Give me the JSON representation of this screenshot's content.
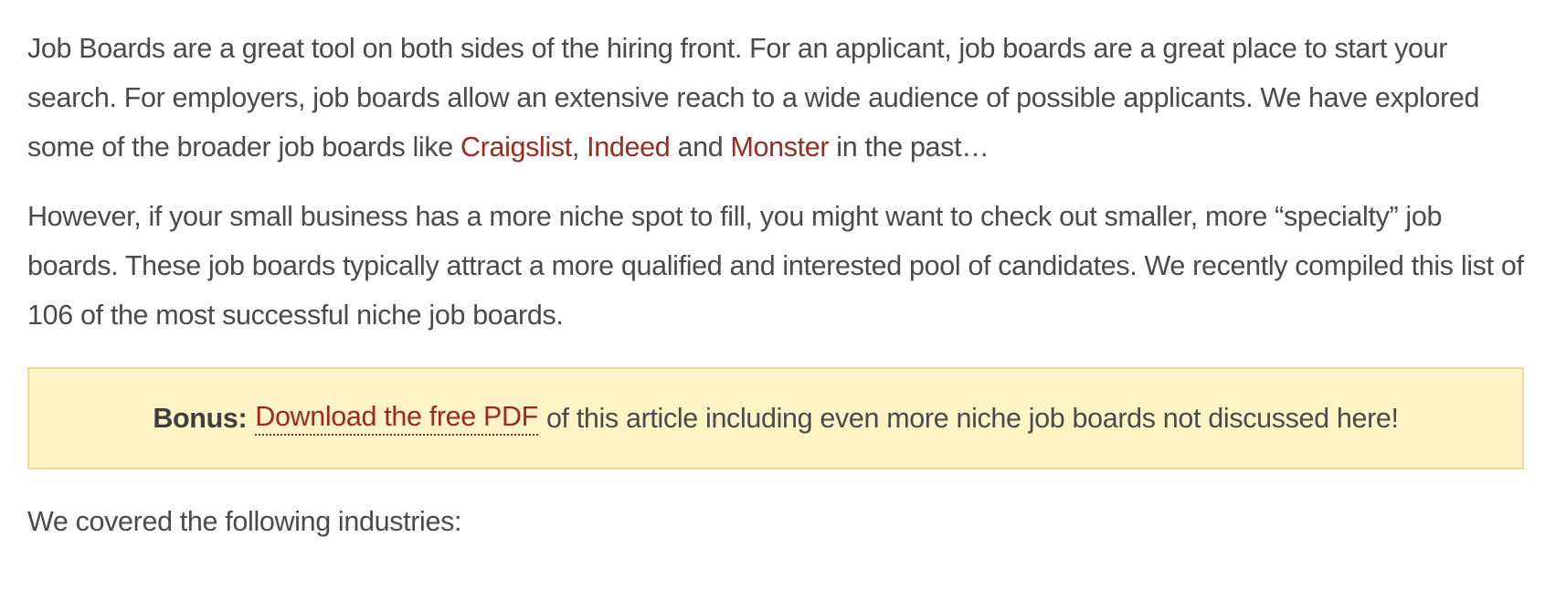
{
  "paragraph1": {
    "text_before_links": "Job Boards are a great tool on both sides of the hiring front.  For an applicant, job boards are a great place to start your search.  For employers, job boards allow an extensive reach to a wide audience of possible applicants.  We have explored some of the broader job boards like ",
    "link_craigslist": "Craigslist",
    "comma": ", ",
    "link_indeed": "Indeed",
    "and_text": " and ",
    "link_monster": "Monster",
    "text_after_links": " in the past…"
  },
  "paragraph2": {
    "text": "However, if your small business has a more niche spot to fill, you might want to check out smaller, more “specialty” job boards.  These job boards typically attract a more qualified and interested pool of candidates.  We recently compiled this list of 106 of the most successful niche job boards."
  },
  "bonus": {
    "label": "Bonus:",
    "link_text": "Download the free PDF",
    "text_after": "of this article including even more niche job boards not discussed here!"
  },
  "paragraph3": {
    "text": "We covered the following industries:"
  },
  "colors": {
    "body_text": "#4a4a4a",
    "link": "#9a2b1e",
    "bonus_background": "#fdf3c4",
    "bonus_border": "#f1d89a"
  }
}
